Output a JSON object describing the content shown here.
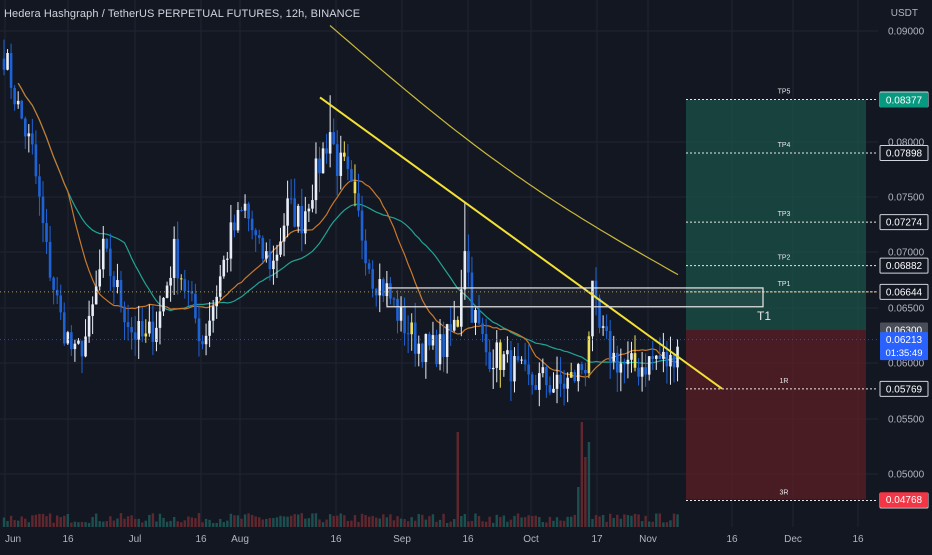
{
  "header": {
    "pair": "Hedera Hashgraph / TetherUS PERPETUAL FUTURES",
    "interval": "12h",
    "exchange": "BINANCE",
    "separator": ", "
  },
  "colors": {
    "background": "#131722",
    "up_candle": "#e8eef8",
    "down_candle": "#1e63d6",
    "highlight_candle": "#f2e05a",
    "trendline": "#f2e035",
    "ma_teal": "#22a394",
    "ma_orange": "#c9792c",
    "ma_yellow": "#c9b83a",
    "profit_zone": "#1b5248",
    "loss_zone": "#5c1f25",
    "grid": "#1f2433",
    "axis_text": "#b2b5be"
  },
  "chart_data": {
    "type": "candlestick",
    "title": "Hedera Hashgraph / TetherUS PERPETUAL FUTURES, 12h, BINANCE",
    "y_unit": "USDT",
    "x_ticks": [
      "Jun",
      "16",
      "Jul",
      "16",
      "Aug",
      "16",
      "Sep",
      "16",
      "Oct",
      "17",
      "Nov",
      "16",
      "Dec",
      "16"
    ],
    "y_ticks": [
      "0.09000",
      "0.08000",
      "0.07500",
      "0.07000",
      "0.06500",
      "0.06000",
      "0.05500",
      "0.05000"
    ],
    "ylim": [
      0.047,
      0.0925
    ],
    "price_path": [
      [
        0,
        0.088
      ],
      [
        4,
        0.083
      ],
      [
        8,
        0.079
      ],
      [
        12,
        0.07
      ],
      [
        16,
        0.064
      ],
      [
        20,
        0.0605
      ],
      [
        24,
        0.063
      ],
      [
        28,
        0.07
      ],
      [
        32,
        0.0665
      ],
      [
        36,
        0.063
      ],
      [
        40,
        0.062
      ],
      [
        44,
        0.0645
      ],
      [
        48,
        0.07
      ],
      [
        52,
        0.066
      ],
      [
        56,
        0.062
      ],
      [
        60,
        0.0665
      ],
      [
        64,
        0.0715
      ],
      [
        68,
        0.074
      ],
      [
        72,
        0.07
      ],
      [
        76,
        0.069
      ],
      [
        80,
        0.074
      ],
      [
        84,
        0.073
      ],
      [
        88,
        0.077
      ],
      [
        92,
        0.081
      ],
      [
        94,
        0.078
      ],
      [
        96,
        0.0775
      ],
      [
        100,
        0.073
      ],
      [
        104,
        0.068
      ],
      [
        108,
        0.0665
      ],
      [
        112,
        0.064
      ],
      [
        116,
        0.062
      ],
      [
        120,
        0.0612
      ],
      [
        124,
        0.0615
      ],
      [
        128,
        0.064
      ],
      [
        130,
        0.071
      ],
      [
        132,
        0.065
      ],
      [
        136,
        0.061
      ],
      [
        140,
        0.0605
      ],
      [
        144,
        0.0595
      ],
      [
        148,
        0.0582
      ],
      [
        152,
        0.0585
      ],
      [
        156,
        0.0578
      ],
      [
        160,
        0.0585
      ],
      [
        164,
        0.06
      ],
      [
        166,
        0.066
      ],
      [
        168,
        0.0628
      ],
      [
        172,
        0.0605
      ],
      [
        176,
        0.0595
      ],
      [
        180,
        0.0598
      ],
      [
        184,
        0.0605
      ],
      [
        188,
        0.06
      ],
      [
        190,
        0.0621
      ]
    ],
    "trendline": {
      "x": [
        "Aug 10",
        "Nov 11"
      ],
      "y": [
        0.084,
        0.0577
      ]
    },
    "volume_spikes": [
      "Sep 11",
      "Oct 12"
    ],
    "zone": {
      "label": "T1",
      "y_top": 0.0668,
      "y_bottom": 0.0651
    },
    "targets": [
      {
        "label": "TP5",
        "value": "0.08381"
      },
      {
        "label": "TP4",
        "value": "0.07898"
      },
      {
        "label": "TP3",
        "value": "0.07274"
      },
      {
        "label": "TP2",
        "value": "0.06882"
      },
      {
        "label": "TP1",
        "value": "0.06644"
      },
      {
        "label": "1R",
        "value": "0.05769"
      },
      {
        "label": "3R",
        "value": "0.04761"
      }
    ],
    "axis_badges": [
      {
        "value": "0.08377",
        "color": "#089981"
      },
      {
        "value": "0.06300",
        "color": "#4a4e59"
      },
      {
        "value": "0.06213",
        "color": "#2962ff"
      },
      {
        "value": "0.04768",
        "color": "#f23645"
      }
    ],
    "current_price": "0.06213",
    "countdown": "01:35:49",
    "entry_price": 0.063,
    "position_top": 0.0838,
    "position_bottom": 0.0477,
    "grid": true,
    "moving_averages": [
      "teal",
      "orange",
      "yellow"
    ]
  }
}
